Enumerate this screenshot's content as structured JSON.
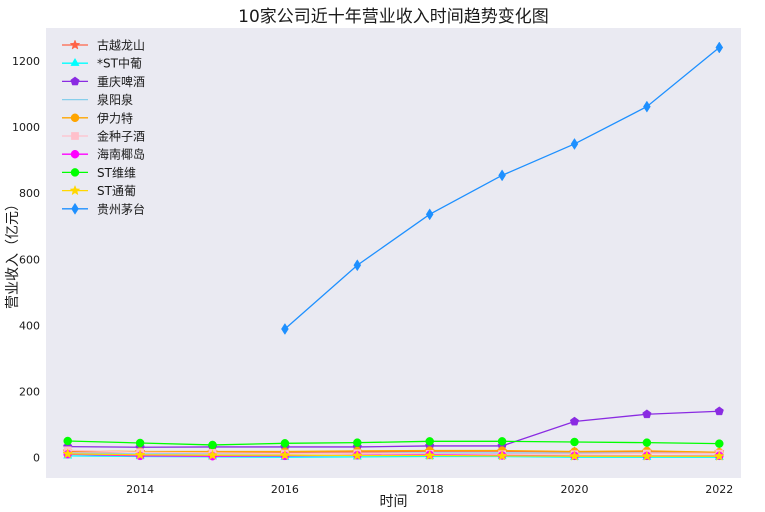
{
  "chart_data": {
    "type": "line",
    "title": "10家公司近十年营业收入时间趋势变化图",
    "xlabel": "时间",
    "ylabel": "营业收入（亿元）",
    "x": [
      2013,
      2014,
      2015,
      2016,
      2017,
      2018,
      2019,
      2020,
      2021,
      2022
    ],
    "xticks": [
      2014,
      2016,
      2018,
      2020,
      2022
    ],
    "yticks": [
      0,
      200,
      400,
      600,
      800,
      1000,
      1200
    ],
    "xlim": [
      2012.7,
      2022.3
    ],
    "ylim": [
      -62,
      1300
    ],
    "grid": false,
    "background": "#eaeaf2",
    "legend_position": "upper-left",
    "series": [
      {
        "name": "古越龙山",
        "color": "#ff6347",
        "marker": "star",
        "values": [
          18,
          17,
          16,
          15,
          17,
          19,
          19,
          17,
          18,
          16
        ]
      },
      {
        "name": "*ST中葡",
        "color": "#00ffff",
        "marker": "triangle",
        "values": [
          5,
          3,
          2,
          1,
          2,
          3,
          3,
          1,
          1,
          1
        ]
      },
      {
        "name": "重庆啤酒",
        "color": "#8a2be2",
        "marker": "pentagon",
        "values": [
          33,
          31,
          32,
          32,
          32,
          35,
          35,
          109,
          131,
          140
        ]
      },
      {
        "name": "泉阳泉",
        "color": "#87ceeb",
        "marker": "none",
        "values": [
          13,
          11,
          12,
          12,
          13,
          14,
          14,
          13,
          13,
          11
        ]
      },
      {
        "name": "伊力特",
        "color": "#ffa500",
        "marker": "circle",
        "values": [
          20,
          18,
          18,
          18,
          20,
          21,
          21,
          18,
          20,
          16
        ]
      },
      {
        "name": "金种子酒",
        "color": "#ffc0cb",
        "marker": "square",
        "values": [
          22,
          16,
          14,
          12,
          13,
          11,
          10,
          10,
          12,
          12
        ]
      },
      {
        "name": "海南椰岛",
        "color": "#ff00ff",
        "marker": "circle",
        "values": [
          10,
          5,
          4,
          5,
          7,
          8,
          6,
          5,
          5,
          5
        ]
      },
      {
        "name": "ST维维",
        "color": "#00ff00",
        "marker": "circle",
        "values": [
          50,
          44,
          38,
          43,
          45,
          49,
          49,
          47,
          45,
          42
        ]
      },
      {
        "name": "ST通葡",
        "color": "#ffd700",
        "marker": "star",
        "values": [
          11,
          8,
          7,
          7,
          6,
          6,
          5,
          4,
          4,
          4
        ]
      },
      {
        "name": "贵州茅台",
        "color": "#1e90ff",
        "marker": "diamond",
        "values": [
          null,
          null,
          null,
          389,
          582,
          736,
          854,
          949,
          1062,
          1241
        ]
      }
    ]
  }
}
